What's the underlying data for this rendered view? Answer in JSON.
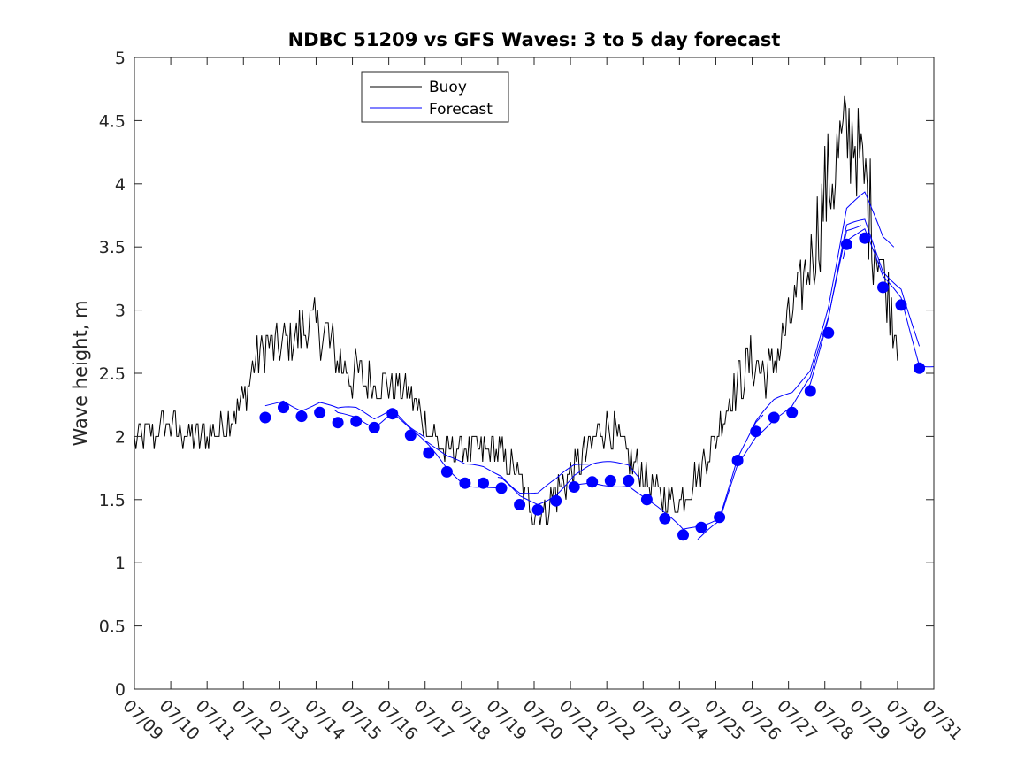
{
  "chart_data": {
    "type": "line",
    "title": "NDBC 51209 vs GFS Waves: 3 to 5 day forecast",
    "xlabel": "",
    "ylabel": "Wave height, m",
    "xlim": [
      0,
      22
    ],
    "ylim": [
      0,
      5
    ],
    "x_tick_labels": [
      "07/09",
      "07/10",
      "07/11",
      "07/12",
      "07/13",
      "07/14",
      "07/15",
      "07/16",
      "07/17",
      "07/18",
      "07/19",
      "07/20",
      "07/21",
      "07/22",
      "07/23",
      "07/24",
      "07/25",
      "07/26",
      "07/27",
      "07/28",
      "07/29",
      "07/30",
      "07/31"
    ],
    "y_ticks": [
      0,
      0.5,
      1,
      1.5,
      2,
      2.5,
      3,
      3.5,
      4,
      4.5,
      5
    ],
    "y_tick_labels": [
      "0",
      "0.5",
      "1",
      "1.5",
      "2",
      "2.5",
      "3",
      "3.5",
      "4",
      "4.5",
      "5"
    ],
    "legend": {
      "placement": "top-left",
      "entries": [
        "Buoy",
        "Forecast"
      ]
    },
    "colors": {
      "buoy": "#000000",
      "forecast": "#0000ff",
      "axes": "#262626"
    },
    "buoy_anchor": [
      [
        0.0,
        2.0
      ],
      [
        0.2,
        2.0
      ],
      [
        0.5,
        2.0
      ],
      [
        1.0,
        2.1
      ],
      [
        1.5,
        2.0
      ],
      [
        2.0,
        2.0
      ],
      [
        2.5,
        2.1
      ],
      [
        3.0,
        2.3
      ],
      [
        3.3,
        2.6
      ],
      [
        3.6,
        2.7
      ],
      [
        4.0,
        2.7
      ],
      [
        4.5,
        2.8
      ],
      [
        4.8,
        2.9
      ],
      [
        5.0,
        2.9
      ],
      [
        5.3,
        2.8
      ],
      [
        5.6,
        2.6
      ],
      [
        6.0,
        2.5
      ],
      [
        6.5,
        2.4
      ],
      [
        7.0,
        2.4
      ],
      [
        7.5,
        2.4
      ],
      [
        8.0,
        2.1
      ],
      [
        8.5,
        1.9
      ],
      [
        9.0,
        1.9
      ],
      [
        9.5,
        1.9
      ],
      [
        10.0,
        1.9
      ],
      [
        10.5,
        1.7
      ],
      [
        11.0,
        1.4
      ],
      [
        11.3,
        1.4
      ],
      [
        11.5,
        1.5
      ],
      [
        12.0,
        1.7
      ],
      [
        12.5,
        1.9
      ],
      [
        13.0,
        2.1
      ],
      [
        13.3,
        2.0
      ],
      [
        13.6,
        1.8
      ],
      [
        14.0,
        1.7
      ],
      [
        14.5,
        1.5
      ],
      [
        15.0,
        1.5
      ],
      [
        15.5,
        1.7
      ],
      [
        16.0,
        2.0
      ],
      [
        16.5,
        2.4
      ],
      [
        17.0,
        2.6
      ],
      [
        17.5,
        2.5
      ],
      [
        18.0,
        2.9
      ],
      [
        18.5,
        3.3
      ],
      [
        19.0,
        3.9
      ],
      [
        19.5,
        4.3
      ],
      [
        19.8,
        4.4
      ],
      [
        20.0,
        4.1
      ],
      [
        20.3,
        3.7
      ],
      [
        20.6,
        3.3
      ],
      [
        21.0,
        2.8
      ]
    ],
    "forecast_dots": {
      "x": [
        3.6,
        4.1,
        4.6,
        5.1,
        5.6,
        6.1,
        6.6,
        7.1,
        7.6,
        8.1,
        8.6,
        9.1,
        9.6,
        10.1,
        10.6,
        11.1,
        11.6,
        12.1,
        12.6,
        13.1,
        13.6,
        14.1,
        14.6,
        15.1,
        15.6,
        16.1,
        16.6,
        17.1,
        17.6,
        18.1,
        18.6,
        19.1,
        19.6,
        20.1,
        20.6,
        21.1,
        21.6
      ],
      "y": [
        2.15,
        2.23,
        2.16,
        2.19,
        2.11,
        2.12,
        2.07,
        2.18,
        2.01,
        1.87,
        1.72,
        1.63,
        1.63,
        1.59,
        1.46,
        1.42,
        1.49,
        1.6,
        1.64,
        1.65,
        1.65,
        1.5,
        1.35,
        1.22,
        1.28,
        1.36,
        1.81,
        2.04,
        2.15,
        2.19,
        2.36,
        2.82,
        3.52,
        3.57,
        3.18,
        3.04,
        2.54
      ]
    }
  }
}
